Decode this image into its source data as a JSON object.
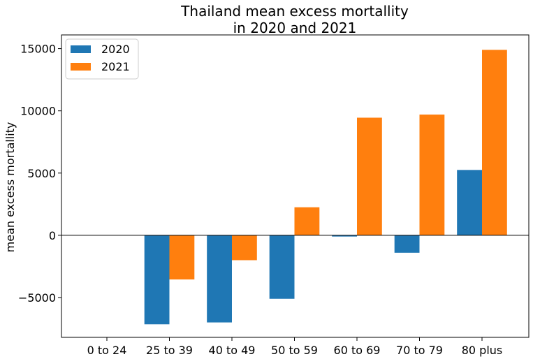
{
  "chart_data": {
    "type": "bar",
    "title_line1": "Thailand mean excess mortallity",
    "title_line2": "in 2020 and 2021",
    "xlabel": "",
    "ylabel": "mean excess mortallity",
    "categories": [
      "0 to 24",
      "25 to 39",
      "40 to 49",
      "50 to 59",
      "60 to 69",
      "70 to 79",
      "80 plus"
    ],
    "series": [
      {
        "name": "2020",
        "color": "#1f77b4",
        "values": [
          0,
          -7150,
          -7000,
          -5100,
          -100,
          -1400,
          5250
        ]
      },
      {
        "name": "2021",
        "color": "#ff7f0e",
        "values": [
          0,
          -3550,
          -2000,
          2250,
          9450,
          9700,
          14900
        ]
      }
    ],
    "ylim": [
      -8200,
      16100
    ],
    "yticks": [
      -5000,
      0,
      5000,
      10000,
      15000
    ],
    "ytick_labels": [
      "−5000",
      "0",
      "5000",
      "10000",
      "15000"
    ],
    "legend_position": "upper-left",
    "grid": false
  }
}
